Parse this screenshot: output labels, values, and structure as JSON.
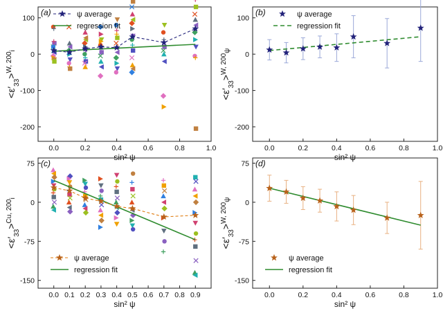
{
  "chart_data": [
    {
      "id": "a",
      "type": "scatter",
      "panel_label": "(a)",
      "ylabel_main": "<ε′",
      "ylabel_sub": "33",
      "ylabel_sup": "W, 200",
      "ylabel_tail": ">",
      "ylabel_idx": "i",
      "xlabel": "sin² ψ",
      "xlim": [
        -0.1,
        1.0
      ],
      "ylim": [
        -240,
        130
      ],
      "xticks": [
        "0.0",
        "0.2",
        "0.4",
        "0.6",
        "0.8",
        "1.0"
      ],
      "xtick_values": [
        0,
        0.2,
        0.4,
        0.6,
        0.8,
        1.0
      ],
      "yticks": [
        "-200",
        "-100",
        "0",
        "100"
      ],
      "ytick_values": [
        -200,
        -100,
        0,
        100
      ],
      "legend": {
        "position": "top-left",
        "entries": [
          "ψ average",
          "regression fit"
        ]
      },
      "x": [
        0.0,
        0.1,
        0.2,
        0.3,
        0.4,
        0.5,
        0.7,
        0.9
      ],
      "average": [
        10,
        5,
        15,
        20,
        18,
        48,
        32,
        70
      ],
      "regression": {
        "x": [
          0.0,
          0.9
        ],
        "y": [
          8,
          27
        ]
      },
      "individual_points": [
        [
          0.0,
          75
        ],
        [
          0.0,
          70
        ],
        [
          0.0,
          30
        ],
        [
          0.0,
          20
        ],
        [
          0.0,
          10
        ],
        [
          0.0,
          5
        ],
        [
          0.0,
          -5
        ],
        [
          0.0,
          -10
        ],
        [
          0.0,
          -15
        ],
        [
          0.0,
          20
        ],
        [
          0.0,
          35
        ],
        [
          0.0,
          -20
        ],
        [
          0.1,
          75
        ],
        [
          0.1,
          30
        ],
        [
          0.1,
          20
        ],
        [
          0.1,
          10
        ],
        [
          0.1,
          0
        ],
        [
          0.1,
          -15
        ],
        [
          0.1,
          -25
        ],
        [
          0.1,
          -35
        ],
        [
          0.1,
          -40
        ],
        [
          0.1,
          5
        ],
        [
          0.2,
          60
        ],
        [
          0.2,
          40
        ],
        [
          0.2,
          30
        ],
        [
          0.2,
          20
        ],
        [
          0.2,
          10
        ],
        [
          0.2,
          0
        ],
        [
          0.2,
          -10
        ],
        [
          0.2,
          -20
        ],
        [
          0.2,
          -25
        ],
        [
          0.2,
          -35
        ],
        [
          0.2,
          45
        ],
        [
          0.3,
          75
        ],
        [
          0.3,
          55
        ],
        [
          0.3,
          40
        ],
        [
          0.3,
          25
        ],
        [
          0.3,
          15
        ],
        [
          0.3,
          5
        ],
        [
          0.3,
          -5
        ],
        [
          0.3,
          -20
        ],
        [
          0.3,
          -35
        ],
        [
          0.3,
          -60
        ],
        [
          0.3,
          35
        ],
        [
          0.4,
          95
        ],
        [
          0.4,
          80
        ],
        [
          0.4,
          65
        ],
        [
          0.4,
          45
        ],
        [
          0.4,
          30
        ],
        [
          0.4,
          20
        ],
        [
          0.4,
          5
        ],
        [
          0.4,
          -10
        ],
        [
          0.4,
          -25
        ],
        [
          0.4,
          -40
        ],
        [
          0.4,
          -50
        ],
        [
          0.4,
          55
        ],
        [
          0.5,
          145
        ],
        [
          0.5,
          130
        ],
        [
          0.5,
          110
        ],
        [
          0.5,
          95
        ],
        [
          0.5,
          85
        ],
        [
          0.5,
          70
        ],
        [
          0.5,
          50
        ],
        [
          0.5,
          40
        ],
        [
          0.5,
          25
        ],
        [
          0.5,
          10
        ],
        [
          0.5,
          -10
        ],
        [
          0.5,
          -30
        ],
        [
          0.5,
          -40
        ],
        [
          0.5,
          -50
        ],
        [
          0.7,
          165
        ],
        [
          0.7,
          80
        ],
        [
          0.7,
          60
        ],
        [
          0.7,
          40
        ],
        [
          0.7,
          20
        ],
        [
          0.7,
          10
        ],
        [
          0.7,
          0
        ],
        [
          0.7,
          -20
        ],
        [
          0.7,
          -115
        ],
        [
          0.7,
          -145
        ],
        [
          0.9,
          225
        ],
        [
          0.9,
          175
        ],
        [
          0.9,
          150
        ],
        [
          0.9,
          130
        ],
        [
          0.9,
          110
        ],
        [
          0.9,
          95
        ],
        [
          0.9,
          80
        ],
        [
          0.9,
          60
        ],
        [
          0.9,
          40
        ],
        [
          0.9,
          20
        ],
        [
          0.9,
          -5
        ],
        [
          0.9,
          -10
        ],
        [
          0.9,
          -205
        ]
      ]
    },
    {
      "id": "b",
      "type": "scatter",
      "panel_label": "(b)",
      "ylabel_main": "<ε′",
      "ylabel_sub": "33",
      "ylabel_sup": "W, 200",
      "ylabel_tail": ">",
      "ylabel_idx": "ψ",
      "xlabel": "sin² ψ",
      "xlim": [
        -0.1,
        1.0
      ],
      "ylim": [
        -240,
        130
      ],
      "xticks": [
        "0.0",
        "0.2",
        "0.4",
        "0.6",
        "0.8",
        "1.0"
      ],
      "xtick_values": [
        0,
        0.2,
        0.4,
        0.6,
        0.8,
        1.0
      ],
      "yticks": [
        "-200",
        "-100",
        "0",
        "100"
      ],
      "ytick_values": [
        -200,
        -100,
        0,
        100
      ],
      "legend": {
        "position": "top-left",
        "entries": [
          "ψ average",
          "regression fit"
        ]
      },
      "x": [
        0.0,
        0.1,
        0.2,
        0.3,
        0.4,
        0.5,
        0.7,
        0.9
      ],
      "average": [
        12,
        4,
        15,
        20,
        18,
        48,
        30,
        72
      ],
      "error": [
        28,
        28,
        30,
        30,
        38,
        58,
        68,
        92
      ],
      "regression": {
        "x": [
          0.0,
          0.9
        ],
        "y": [
          10,
          48
        ]
      }
    },
    {
      "id": "c",
      "type": "scatter",
      "panel_label": "(c)",
      "ylabel_main": "<ε′",
      "ylabel_sub": "33",
      "ylabel_sup": "Cu, 200",
      "ylabel_tail": ">",
      "ylabel_idx": "i",
      "xlabel": "sin² ψ",
      "xlim": [
        -0.1,
        1.0
      ],
      "ylim": [
        -165,
        85
      ],
      "xticks": [
        "0.0",
        "0.1",
        "0.2",
        "0.3",
        "0.4",
        "0.5",
        "0.6",
        "0.7",
        "0.8",
        "0.9"
      ],
      "xtick_values": [
        0,
        0.1,
        0.2,
        0.3,
        0.4,
        0.5,
        0.6,
        0.7,
        0.8,
        0.9
      ],
      "yticks": [
        "75",
        "0",
        "-75",
        "-150"
      ],
      "ytick_values": [
        75,
        0,
        -75,
        -150
      ],
      "legend": {
        "position": "bottom-left",
        "entries": [
          "ψ average",
          "regression fit"
        ]
      },
      "x": [
        0.0,
        0.1,
        0.2,
        0.3,
        0.4,
        0.5,
        0.7,
        0.9
      ],
      "average": [
        28,
        22,
        8,
        2,
        -8,
        -12,
        -28,
        -25
      ],
      "regression": {
        "x": [
          0.0,
          0.9
        ],
        "y": [
          42,
          -72
        ]
      },
      "individual_points": [
        [
          0.0,
          62
        ],
        [
          0.0,
          55
        ],
        [
          0.0,
          48
        ],
        [
          0.0,
          40
        ],
        [
          0.0,
          32
        ],
        [
          0.0,
          25
        ],
        [
          0.0,
          18
        ],
        [
          0.0,
          10
        ],
        [
          0.0,
          0
        ],
        [
          0.0,
          -8
        ],
        [
          0.0,
          -15
        ],
        [
          0.1,
          50
        ],
        [
          0.1,
          45
        ],
        [
          0.1,
          38
        ],
        [
          0.1,
          30
        ],
        [
          0.1,
          22
        ],
        [
          0.1,
          15
        ],
        [
          0.1,
          8
        ],
        [
          0.1,
          0
        ],
        [
          0.1,
          -10
        ],
        [
          0.1,
          -18
        ],
        [
          0.2,
          42
        ],
        [
          0.2,
          35
        ],
        [
          0.2,
          28
        ],
        [
          0.2,
          20
        ],
        [
          0.2,
          12
        ],
        [
          0.2,
          5
        ],
        [
          0.2,
          -5
        ],
        [
          0.2,
          -12
        ],
        [
          0.2,
          -20
        ],
        [
          0.3,
          45
        ],
        [
          0.3,
          32
        ],
        [
          0.3,
          22
        ],
        [
          0.3,
          12
        ],
        [
          0.3,
          5
        ],
        [
          0.3,
          -5
        ],
        [
          0.3,
          -15
        ],
        [
          0.3,
          -25
        ],
        [
          0.3,
          -35
        ],
        [
          0.3,
          -48
        ],
        [
          0.4,
          52
        ],
        [
          0.4,
          40
        ],
        [
          0.4,
          30
        ],
        [
          0.4,
          20
        ],
        [
          0.4,
          8
        ],
        [
          0.4,
          0
        ],
        [
          0.4,
          -10
        ],
        [
          0.4,
          -20
        ],
        [
          0.4,
          -30
        ],
        [
          0.4,
          -42
        ],
        [
          0.5,
          55
        ],
        [
          0.5,
          38
        ],
        [
          0.5,
          25
        ],
        [
          0.5,
          12
        ],
        [
          0.5,
          0
        ],
        [
          0.5,
          -15
        ],
        [
          0.5,
          -25
        ],
        [
          0.5,
          -35
        ],
        [
          0.5,
          -45
        ],
        [
          0.5,
          -52
        ],
        [
          0.7,
          42
        ],
        [
          0.7,
          32
        ],
        [
          0.7,
          22
        ],
        [
          0.7,
          12
        ],
        [
          0.7,
          0
        ],
        [
          0.7,
          -12
        ],
        [
          0.7,
          -30
        ],
        [
          0.7,
          -55
        ],
        [
          0.7,
          -75
        ],
        [
          0.7,
          -95
        ],
        [
          0.9,
          48
        ],
        [
          0.9,
          40
        ],
        [
          0.9,
          25
        ],
        [
          0.9,
          12
        ],
        [
          0.9,
          0
        ],
        [
          0.9,
          -20
        ],
        [
          0.9,
          -40
        ],
        [
          0.9,
          -60
        ],
        [
          0.9,
          -72
        ],
        [
          0.9,
          -85
        ],
        [
          0.9,
          -112
        ],
        [
          0.9,
          -135
        ],
        [
          0.9,
          -140
        ]
      ]
    },
    {
      "id": "d",
      "type": "scatter",
      "panel_label": "(d)",
      "ylabel_main": "<ε′",
      "ylabel_sub": "33",
      "ylabel_sup": "W, 200",
      "ylabel_tail": ">",
      "ylabel_idx": "ψ",
      "xlabel": "sin² ψ",
      "xlim": [
        -0.1,
        1.0
      ],
      "ylim": [
        -165,
        85
      ],
      "xticks": [
        "0.0",
        "0.2",
        "0.4",
        "0.6",
        "0.8",
        "1.0"
      ],
      "xtick_values": [
        0,
        0.2,
        0.4,
        0.6,
        0.8,
        1.0
      ],
      "yticks": [
        "75",
        "0",
        "-75",
        "-150"
      ],
      "ytick_values": [
        75,
        0,
        -75,
        -150
      ],
      "legend": {
        "position": "bottom-left",
        "entries": [
          "ψ average",
          "regression fit"
        ]
      },
      "x": [
        0.0,
        0.1,
        0.2,
        0.3,
        0.4,
        0.5,
        0.7,
        0.9
      ],
      "average": [
        27,
        20,
        8,
        3,
        -8,
        -15,
        -30,
        -25
      ],
      "error": [
        25,
        22,
        22,
        22,
        28,
        28,
        30,
        65
      ],
      "regression": {
        "x": [
          0.0,
          0.9
        ],
        "y": [
          27,
          -44
        ]
      }
    }
  ],
  "colors": {
    "navy": "#22227a",
    "green": "#2e8b2e",
    "orange": "#e07c10",
    "brown": "#b8621b",
    "errorbar_blue": "#9aa8d8",
    "errorbar_orange": "#e8b080"
  }
}
